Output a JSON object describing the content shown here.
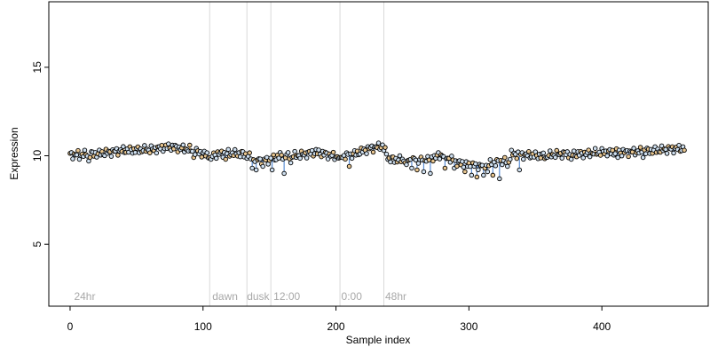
{
  "chart_data": {
    "type": "scatter",
    "title": "",
    "xlabel": "Sample index",
    "ylabel": "Expression",
    "xlim": [
      -16,
      480
    ],
    "ylim": [
      1.5,
      18.7
    ],
    "x_ticks": [
      0,
      100,
      200,
      300,
      400
    ],
    "y_ticks": [
      5,
      10,
      15
    ],
    "grid": false,
    "legend": "none",
    "colors": {
      "point_stroke": "#000000",
      "point_fill_light": "#cfe0f0",
      "point_fill_dark": "#e8c690",
      "low_segment": "#5b8fd6",
      "high_segment": "#e8a040",
      "vline": "#d9d9d9",
      "phase_text": "#a8a8a8"
    },
    "phase_lines": [
      105,
      133,
      151,
      203,
      236
    ],
    "phase_labels": [
      {
        "x": 3,
        "text": "24hr"
      },
      {
        "x": 107,
        "text": "dawn"
      },
      {
        "x": 133,
        "text": "dusk"
      },
      {
        "x": 153,
        "text": "12:00"
      },
      {
        "x": 204,
        "text": "0:00"
      },
      {
        "x": 237,
        "text": "48hr"
      }
    ],
    "trend": [
      [
        0,
        10.05
      ],
      [
        20,
        10.1
      ],
      [
        40,
        10.3
      ],
      [
        60,
        10.35
      ],
      [
        75,
        10.5
      ],
      [
        90,
        10.35
      ],
      [
        105,
        10.0
      ],
      [
        115,
        10.15
      ],
      [
        130,
        10.1
      ],
      [
        140,
        9.8
      ],
      [
        150,
        9.75
      ],
      [
        158,
        10.0
      ],
      [
        170,
        10.0
      ],
      [
        185,
        10.2
      ],
      [
        200,
        9.95
      ],
      [
        210,
        10.0
      ],
      [
        225,
        10.4
      ],
      [
        235,
        10.55
      ],
      [
        240,
        9.8
      ],
      [
        255,
        9.75
      ],
      [
        270,
        9.85
      ],
      [
        280,
        10.05
      ],
      [
        290,
        9.65
      ],
      [
        300,
        9.45
      ],
      [
        310,
        9.45
      ],
      [
        320,
        9.6
      ],
      [
        330,
        9.75
      ],
      [
        332,
        10.1
      ],
      [
        340,
        10.05
      ],
      [
        355,
        10.0
      ],
      [
        370,
        10.1
      ],
      [
        385,
        10.1
      ],
      [
        400,
        10.2
      ],
      [
        420,
        10.2
      ],
      [
        440,
        10.3
      ],
      [
        455,
        10.4
      ],
      [
        462,
        10.4
      ]
    ],
    "n_points": 463,
    "outliers": [
      [
        7,
        9.8
      ],
      [
        14,
        9.7
      ],
      [
        63,
        10.3
      ],
      [
        93,
        9.9
      ],
      [
        106,
        9.8
      ],
      [
        117,
        9.8
      ],
      [
        137,
        9.3
      ],
      [
        140,
        9.2
      ],
      [
        145,
        9.4
      ],
      [
        152,
        9.2
      ],
      [
        161,
        9.0
      ],
      [
        166,
        9.6
      ],
      [
        203,
        9.9
      ],
      [
        210,
        9.4
      ],
      [
        253,
        9.5
      ],
      [
        257,
        9.3
      ],
      [
        261,
        9.2
      ],
      [
        266,
        9.1
      ],
      [
        271,
        9.0
      ],
      [
        282,
        9.3
      ],
      [
        289,
        9.3
      ],
      [
        297,
        9.1
      ],
      [
        302,
        8.9
      ],
      [
        306,
        8.8
      ],
      [
        311,
        8.9
      ],
      [
        314,
        9.1
      ],
      [
        318,
        8.9
      ],
      [
        323,
        8.7
      ],
      [
        329,
        9.4
      ],
      [
        338,
        9.2
      ],
      [
        358,
        9.9
      ],
      [
        377,
        9.8
      ],
      [
        412,
        9.9
      ],
      [
        431,
        9.9
      ]
    ]
  }
}
